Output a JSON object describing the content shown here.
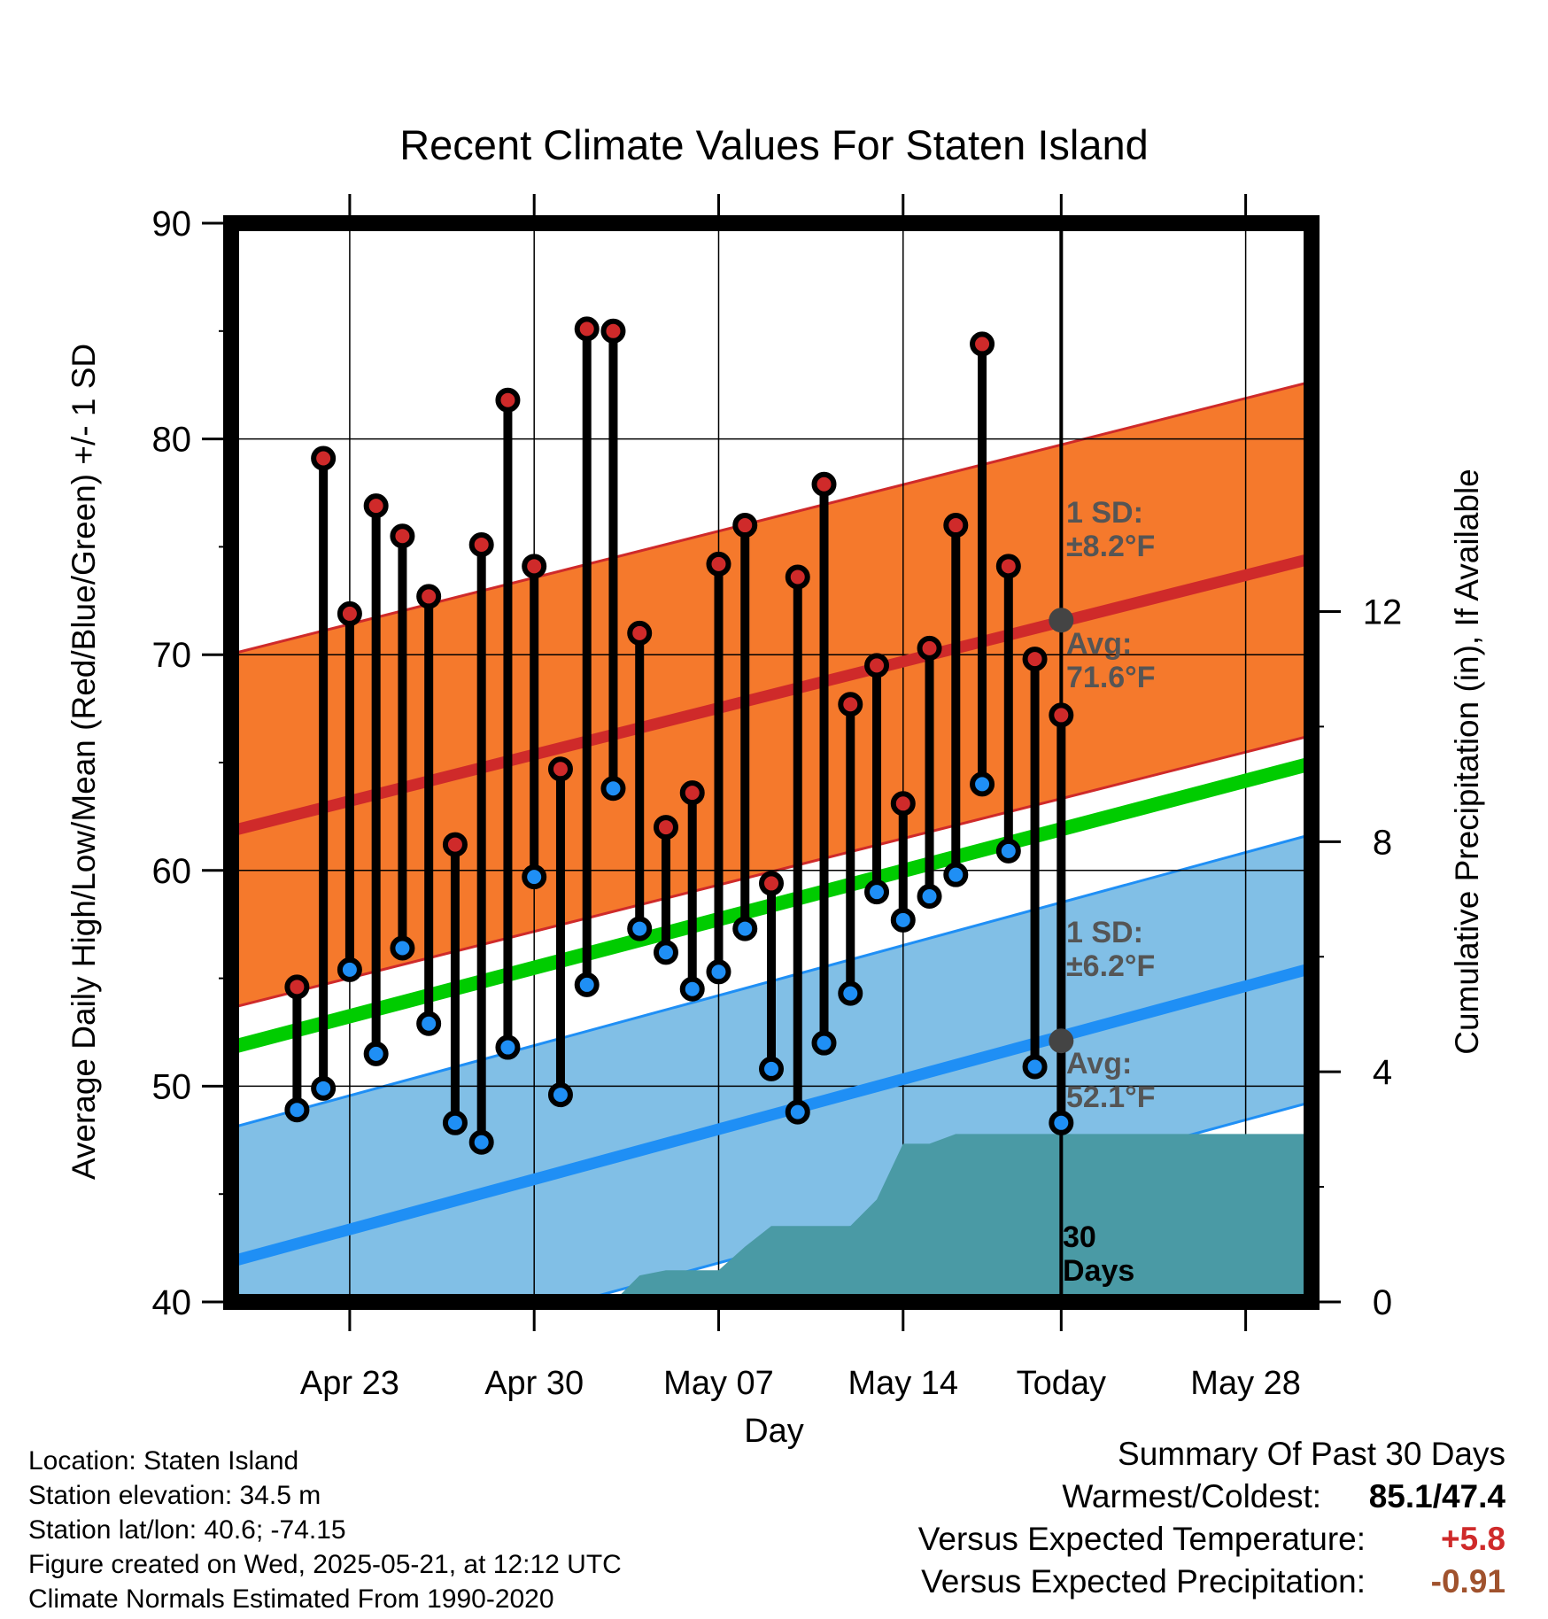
{
  "chart_data": {
    "type": "line",
    "title": "Recent Climate Values For Staten Island",
    "xlabel": "Day",
    "ylabel": "Average Daily High/Low/Mean (Red/Blue/Green) +/- 1 SD",
    "y2label": "Cumulative Precipitation (in), If Available",
    "ylim": [
      40,
      90
    ],
    "y2lim": [
      0,
      18.75
    ],
    "yticks": [
      "90",
      "80",
      "70",
      "60",
      "50",
      "40"
    ],
    "y2ticks": [
      "12",
      "8",
      "4",
      "0"
    ],
    "xticks": [
      "Apr 23",
      "Apr 30",
      "May 07",
      "May 14",
      "Today",
      "May 28"
    ],
    "xlim_days": [
      -11.5,
      29.5
    ],
    "grid": true,
    "days": [
      -9,
      -8,
      -7,
      -6,
      -5,
      -4,
      -3,
      -2,
      -1,
      0,
      1,
      2,
      3,
      4,
      5,
      6,
      7,
      8,
      9,
      10,
      11,
      12,
      13,
      14,
      15,
      16,
      17,
      18,
      19,
      20,
      21,
      22,
      23,
      24,
      25,
      26,
      27,
      28,
      29
    ],
    "observed_days": [
      -9,
      -8,
      -7,
      -6,
      -5,
      -4,
      -3,
      -2,
      -1,
      0,
      1,
      2,
      3,
      4,
      5,
      6,
      7,
      8,
      9,
      10,
      11,
      12,
      13,
      14,
      15,
      16,
      17,
      18,
      19,
      20
    ],
    "observed_high": [
      54.6,
      79.1,
      71.9,
      76.9,
      75.5,
      72.7,
      61.2,
      75.1,
      81.8,
      74.1,
      64.7,
      85.1,
      85.0,
      71.0,
      62.0,
      63.6,
      74.2,
      76.0,
      59.4,
      73.6,
      77.9,
      67.7,
      69.5,
      63.1,
      70.3,
      76.0,
      84.4,
      74.1,
      69.8,
      67.2
    ],
    "observed_low": [
      48.9,
      49.9,
      55.4,
      51.5,
      56.4,
      52.9,
      48.3,
      47.4,
      51.8,
      59.7,
      49.6,
      54.7,
      63.8,
      57.3,
      56.2,
      54.5,
      55.3,
      57.3,
      50.8,
      48.8,
      52.0,
      54.3,
      59.0,
      57.7,
      58.8,
      59.8,
      64.0,
      60.9,
      50.9,
      48.3
    ],
    "normal_high_start": 62.6,
    "normal_high_end": 74.3,
    "normal_high_sd": 8.2,
    "normal_low_start": 42.7,
    "normal_low_end": 55.3,
    "normal_low_sd": 6.2,
    "normal_mean_start": 52.6,
    "normal_mean_end": 64.8,
    "precip_days": [
      -9,
      3,
      4,
      5,
      6,
      7,
      8,
      9,
      10,
      11,
      12,
      13,
      14,
      15,
      16,
      17,
      29
    ],
    "precip_cumulative": [
      0,
      0,
      0.46,
      0.55,
      0.55,
      0.55,
      0.96,
      1.32,
      1.32,
      1.32,
      1.32,
      1.78,
      2.75,
      2.75,
      2.92,
      2.92,
      2.92
    ],
    "today_day": 20,
    "today_label": "Today",
    "today_high_avg": 71.6,
    "today_low_avg": 52.1,
    "annotations": {
      "high_sd": [
        "1 SD:",
        "±8.2°F"
      ],
      "high_avg": [
        "Avg:",
        "71.6°F"
      ],
      "low_sd": [
        "1 SD:",
        "±6.2°F"
      ],
      "low_avg": [
        "Avg:",
        "52.1°F"
      ],
      "days": [
        "30",
        "Days"
      ]
    },
    "colors": {
      "high": "#cf2a2a",
      "high_band": "#f5792c",
      "low": "#1f8ff5",
      "low_band": "#81bfe6",
      "mean": "#00cc00",
      "precip": "#4a9aa5",
      "annotation": "#555555"
    }
  },
  "footer": {
    "location": "Location: Staten Island",
    "elevation": "Station elevation: 34.5 m",
    "latlon": "Station lat/lon: 40.6; -74.15",
    "created": "Figure created on Wed, 2025-05-21, at 12:12 UTC",
    "normals": "Climate Normals Estimated From 1990-2020"
  },
  "summary": {
    "title": "Summary Of Past 30 Days",
    "warmest_label": "Warmest/Coldest:",
    "warmest_value": "85.1/47.4",
    "temp_label": "Versus Expected Temperature:",
    "temp_value": "+5.8",
    "temp_color": "#cf2a2a",
    "precip_label": "Versus Expected Precipitation:",
    "precip_value": "-0.91",
    "precip_color": "#a0522d"
  }
}
